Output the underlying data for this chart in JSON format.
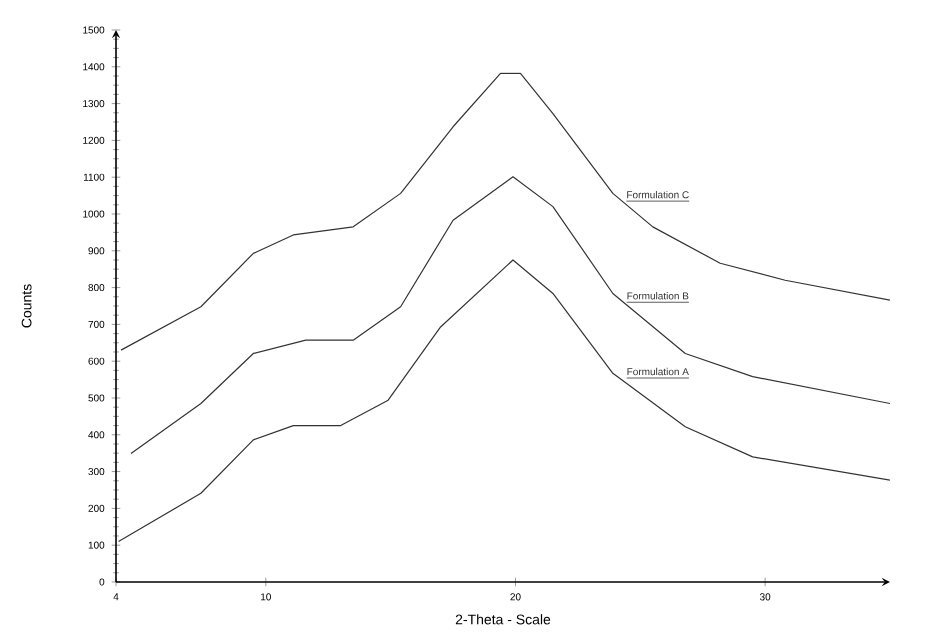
{
  "chart_data": {
    "type": "line",
    "xlabel": "2-Theta - Scale",
    "ylabel": "Counts",
    "xlim": [
      4,
      35
    ],
    "ylim": [
      0,
      1500
    ],
    "xticks": [
      4,
      10,
      20,
      30
    ],
    "yticks": [
      0,
      100,
      200,
      300,
      400,
      500,
      600,
      700,
      800,
      900,
      1000,
      1100,
      1200,
      1300,
      1400,
      1500
    ],
    "grid": false,
    "legend": false,
    "marker": "none",
    "line_style": "solid",
    "series": [
      {
        "name": "Formulation C",
        "color": "#333333",
        "x": [
          4.2,
          7.4,
          9.5,
          11.1,
          13.5,
          15.4,
          17.5,
          19.4,
          20.2,
          21.5,
          23.9,
          25.5,
          28.2,
          30.8,
          35
        ],
        "values": [
          630,
          748,
          893,
          943,
          965,
          1056,
          1237,
          1382,
          1382,
          1273,
          1056,
          965,
          866,
          820,
          766
        ]
      },
      {
        "name": "Formulation B",
        "color": "#333333",
        "x": [
          4.6,
          7.4,
          9.5,
          11.6,
          13.5,
          15.4,
          17.5,
          19.9,
          21.5,
          23.9,
          26.8,
          29.5,
          35
        ],
        "values": [
          349,
          485,
          621,
          657,
          657,
          748,
          983,
          1101,
          1020,
          784,
          621,
          558,
          485
        ]
      },
      {
        "name": "Formulation A",
        "color": "#333333",
        "x": [
          4.1,
          7.4,
          9.5,
          11.1,
          13.0,
          14.9,
          17.0,
          19.9,
          21.5,
          23.9,
          26.8,
          29.5,
          35
        ],
        "values": [
          110,
          241,
          386,
          425,
          425,
          494,
          693,
          875,
          784,
          567,
          422,
          340,
          277
        ]
      }
    ]
  }
}
